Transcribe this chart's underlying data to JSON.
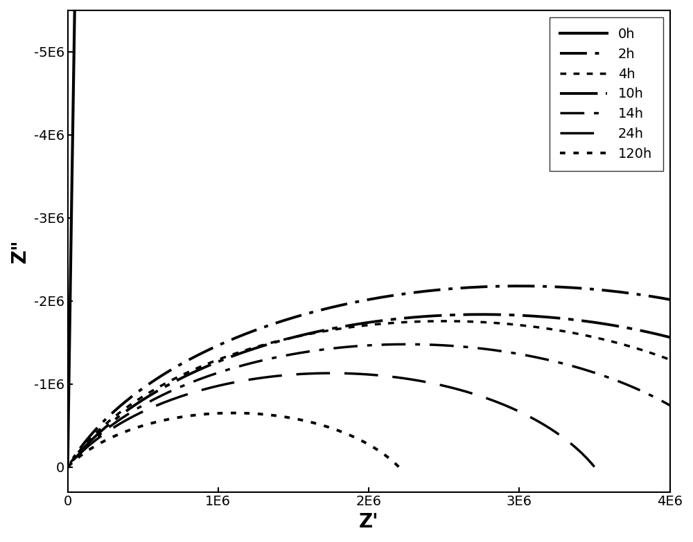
{
  "title": "",
  "xlabel": "Z'",
  "ylabel": "Z\"",
  "xlim": [
    0,
    4000000.0
  ],
  "ylim": [
    -5500000.0,
    300000.0
  ],
  "yticks": [
    0,
    -1000000.0,
    -2000000.0,
    -3000000.0,
    -4000000.0,
    -5000000.0
  ],
  "ytick_labels": [
    "0",
    "-1E6",
    "-2E6",
    "-3E6",
    "-4E6",
    "-5E6"
  ],
  "xticks": [
    0,
    1000000.0,
    2000000.0,
    3000000.0,
    4000000.0
  ],
  "xtick_labels": [
    "0",
    "1E6",
    "2E6",
    "3E6",
    "4E6"
  ],
  "curves": [
    {
      "label": "0h",
      "R": 10000000000.0,
      "C": 1e-11,
      "alpha": 0.995,
      "lw": 3.0,
      "ls": "solid",
      "dashes": null
    },
    {
      "label": "2h",
      "R": 6000000.0,
      "C": 8e-09,
      "alpha": 0.8,
      "lw": 2.8,
      "ls": "custom",
      "dashes": [
        10,
        3,
        1.5,
        3
      ]
    },
    {
      "label": "4h",
      "R": 5000000.0,
      "C": 1.2e-08,
      "alpha": 0.78,
      "lw": 2.5,
      "ls": "custom",
      "dashes": [
        2.5,
        3,
        2.5,
        3
      ]
    },
    {
      "label": "10h",
      "R": 5500000.0,
      "C": 1.5e-08,
      "alpha": 0.75,
      "lw": 2.8,
      "ls": "custom",
      "dashes": [
        14,
        3,
        2,
        3
      ]
    },
    {
      "label": "14h",
      "R": 4500000.0,
      "C": 2e-08,
      "alpha": 0.74,
      "lw": 2.5,
      "ls": "custom",
      "dashes": [
        10,
        4,
        2,
        4
      ]
    },
    {
      "label": "24h",
      "R": 3500000.0,
      "C": 3e-08,
      "alpha": 0.73,
      "lw": 2.5,
      "ls": "custom",
      "dashes": [
        14,
        6
      ]
    },
    {
      "label": "120h",
      "R": 2200000.0,
      "C": 6e-08,
      "alpha": 0.68,
      "lw": 2.8,
      "ls": "dotted",
      "dashes": [
        2,
        3
      ]
    }
  ],
  "background_color": "#ffffff",
  "legend_loc": "upper right",
  "legend_fontsize": 14,
  "axis_fontsize": 20,
  "tick_fontsize": 14
}
